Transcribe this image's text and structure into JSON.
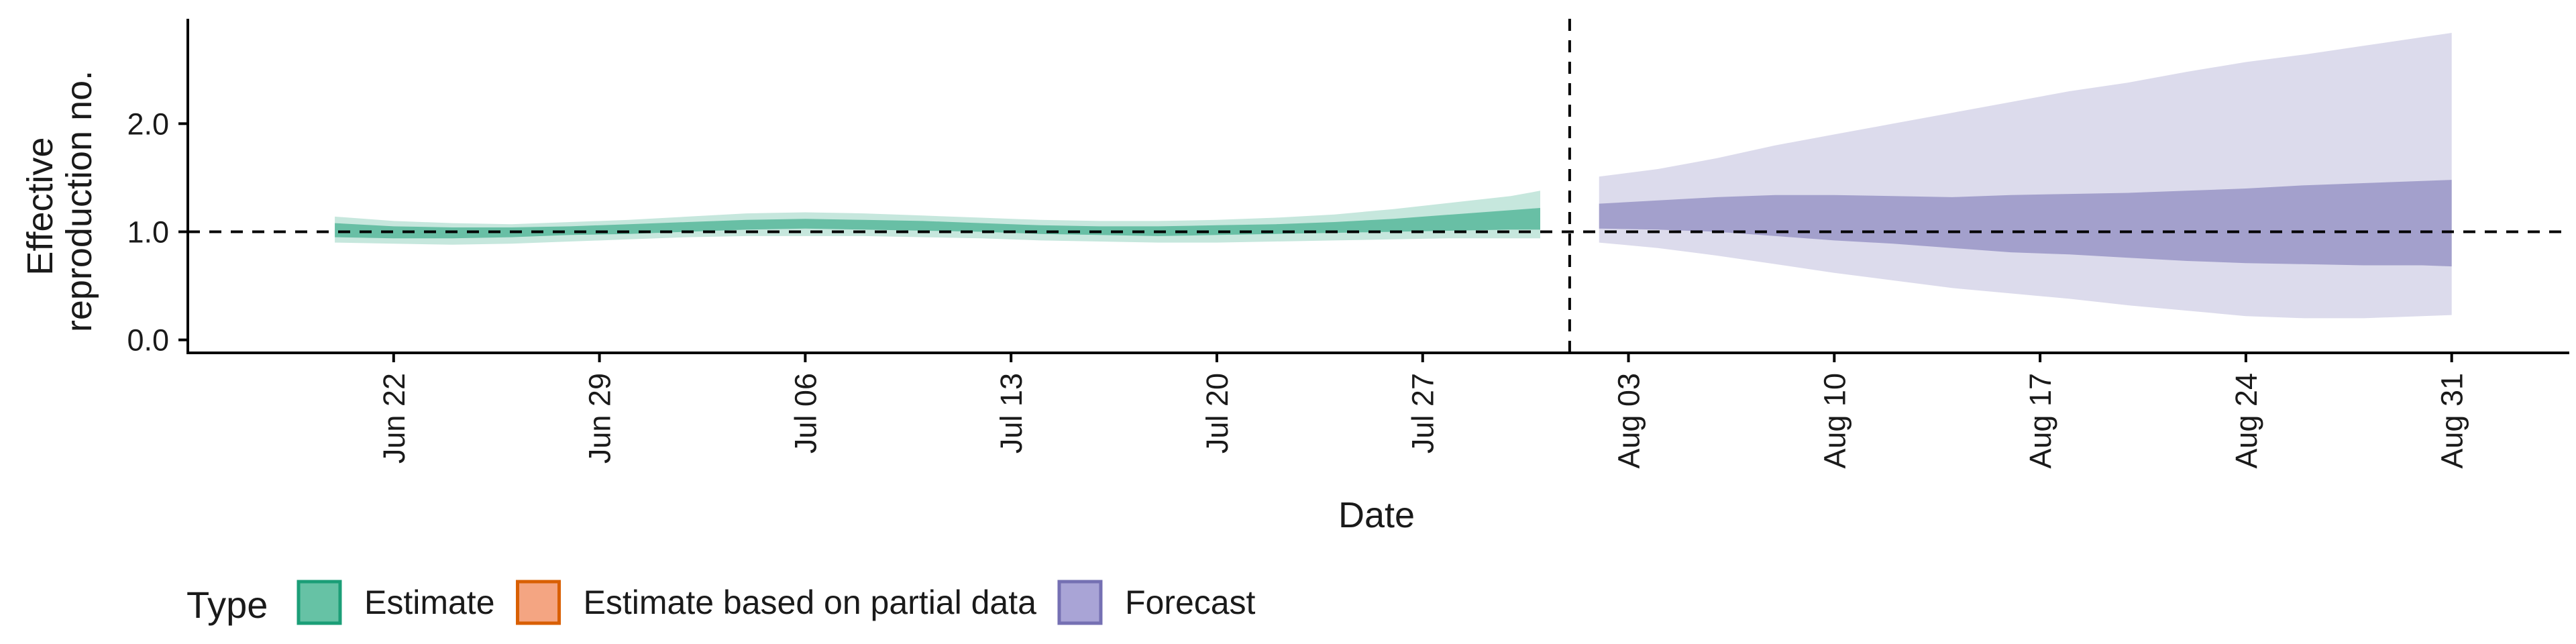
{
  "chart_data": {
    "type": "area",
    "xlabel": "Date",
    "ylabel_lines": [
      "Effective",
      "reproduction no."
    ],
    "x_axis": {
      "range": [
        "2020-06-15",
        "2020-09-04"
      ],
      "ticks": [
        {
          "date": "2020-06-22",
          "label": "Jun 22"
        },
        {
          "date": "2020-06-29",
          "label": "Jun 29"
        },
        {
          "date": "2020-07-06",
          "label": "Jul 06"
        },
        {
          "date": "2020-07-13",
          "label": "Jul 13"
        },
        {
          "date": "2020-07-20",
          "label": "Jul 20"
        },
        {
          "date": "2020-07-27",
          "label": "Jul 27"
        },
        {
          "date": "2020-08-03",
          "label": "Aug 03"
        },
        {
          "date": "2020-08-10",
          "label": "Aug 10"
        },
        {
          "date": "2020-08-17",
          "label": "Aug 17"
        },
        {
          "date": "2020-08-24",
          "label": "Aug 24"
        },
        {
          "date": "2020-08-31",
          "label": "Aug 31"
        }
      ]
    },
    "y_axis": {
      "range": [
        -0.12,
        2.97
      ],
      "ticks": [
        {
          "value": 0,
          "label": "0.0"
        },
        {
          "value": 1,
          "label": "1.0"
        },
        {
          "value": 2,
          "label": "2.0"
        }
      ]
    },
    "reference_lines": {
      "horizontal_y": 1.0,
      "vertical_date": "2020-08-01"
    },
    "grid": false,
    "legend": {
      "title": "Type",
      "position": "bottom",
      "items": [
        {
          "label": "Estimate",
          "fill": "#66c2a5",
          "stroke": "#1b9e77"
        },
        {
          "label": "Estimate based on partial data",
          "fill": "#f4a582",
          "stroke": "#d95f02"
        },
        {
          "label": "Forecast",
          "fill": "#a9a4d6",
          "stroke": "#7570b3"
        }
      ]
    },
    "series": [
      {
        "name": "Estimate",
        "color": "#1b9e77",
        "points": [
          {
            "date": "2020-06-20",
            "outer": [
              0.9,
              1.14
            ],
            "inner": [
              0.95,
              1.08
            ]
          },
          {
            "date": "2020-06-22",
            "outer": [
              0.89,
              1.1
            ],
            "inner": [
              0.94,
              1.05
            ]
          },
          {
            "date": "2020-06-24",
            "outer": [
              0.88,
              1.08
            ],
            "inner": [
              0.94,
              1.04
            ]
          },
          {
            "date": "2020-06-26",
            "outer": [
              0.89,
              1.07
            ],
            "inner": [
              0.95,
              1.04
            ]
          },
          {
            "date": "2020-06-28",
            "outer": [
              0.91,
              1.09
            ],
            "inner": [
              0.97,
              1.05
            ]
          },
          {
            "date": "2020-06-30",
            "outer": [
              0.93,
              1.11
            ],
            "inner": [
              0.98,
              1.07
            ]
          },
          {
            "date": "2020-07-02",
            "outer": [
              0.95,
              1.14
            ],
            "inner": [
              1.0,
              1.09
            ]
          },
          {
            "date": "2020-07-04",
            "outer": [
              0.96,
              1.17
            ],
            "inner": [
              1.02,
              1.11
            ]
          },
          {
            "date": "2020-07-06",
            "outer": [
              0.96,
              1.18
            ],
            "inner": [
              1.03,
              1.12
            ]
          },
          {
            "date": "2020-07-08",
            "outer": [
              0.96,
              1.17
            ],
            "inner": [
              1.02,
              1.11
            ]
          },
          {
            "date": "2020-07-10",
            "outer": [
              0.95,
              1.15
            ],
            "inner": [
              1.01,
              1.1
            ]
          },
          {
            "date": "2020-07-12",
            "outer": [
              0.94,
              1.13
            ],
            "inner": [
              1.0,
              1.08
            ]
          },
          {
            "date": "2020-07-14",
            "outer": [
              0.92,
              1.11
            ],
            "inner": [
              0.98,
              1.06
            ]
          },
          {
            "date": "2020-07-16",
            "outer": [
              0.91,
              1.1
            ],
            "inner": [
              0.97,
              1.05
            ]
          },
          {
            "date": "2020-07-18",
            "outer": [
              0.9,
              1.1
            ],
            "inner": [
              0.96,
              1.05
            ]
          },
          {
            "date": "2020-07-20",
            "outer": [
              0.9,
              1.11
            ],
            "inner": [
              0.97,
              1.06
            ]
          },
          {
            "date": "2020-07-22",
            "outer": [
              0.91,
              1.13
            ],
            "inner": [
              0.98,
              1.07
            ]
          },
          {
            "date": "2020-07-24",
            "outer": [
              0.92,
              1.16
            ],
            "inner": [
              0.99,
              1.09
            ]
          },
          {
            "date": "2020-07-26",
            "outer": [
              0.93,
              1.21
            ],
            "inner": [
              1.0,
              1.12
            ]
          },
          {
            "date": "2020-07-28",
            "outer": [
              0.94,
              1.27
            ],
            "inner": [
              1.01,
              1.16
            ]
          },
          {
            "date": "2020-07-30",
            "outer": [
              0.94,
              1.33
            ],
            "inner": [
              1.02,
              1.2
            ]
          },
          {
            "date": "2020-07-31",
            "outer": [
              0.94,
              1.38
            ],
            "inner": [
              1.02,
              1.22
            ]
          }
        ]
      },
      {
        "name": "Forecast",
        "color": "#7570b3",
        "points": [
          {
            "date": "2020-08-02",
            "outer": [
              0.9,
              1.51
            ],
            "inner": [
              1.03,
              1.26
            ]
          },
          {
            "date": "2020-08-04",
            "outer": [
              0.85,
              1.58
            ],
            "inner": [
              1.02,
              1.29
            ]
          },
          {
            "date": "2020-08-06",
            "outer": [
              0.78,
              1.68
            ],
            "inner": [
              1.0,
              1.32
            ]
          },
          {
            "date": "2020-08-08",
            "outer": [
              0.7,
              1.8
            ],
            "inner": [
              0.96,
              1.34
            ]
          },
          {
            "date": "2020-08-10",
            "outer": [
              0.62,
              1.9
            ],
            "inner": [
              0.92,
              1.34
            ]
          },
          {
            "date": "2020-08-12",
            "outer": [
              0.55,
              2.0
            ],
            "inner": [
              0.89,
              1.33
            ]
          },
          {
            "date": "2020-08-14",
            "outer": [
              0.48,
              2.1
            ],
            "inner": [
              0.85,
              1.32
            ]
          },
          {
            "date": "2020-08-16",
            "outer": [
              0.43,
              2.2
            ],
            "inner": [
              0.81,
              1.34
            ]
          },
          {
            "date": "2020-08-18",
            "outer": [
              0.38,
              2.3
            ],
            "inner": [
              0.79,
              1.35
            ]
          },
          {
            "date": "2020-08-20",
            "outer": [
              0.32,
              2.38
            ],
            "inner": [
              0.76,
              1.36
            ]
          },
          {
            "date": "2020-08-22",
            "outer": [
              0.27,
              2.48
            ],
            "inner": [
              0.73,
              1.38
            ]
          },
          {
            "date": "2020-08-24",
            "outer": [
              0.22,
              2.57
            ],
            "inner": [
              0.71,
              1.4
            ]
          },
          {
            "date": "2020-08-26",
            "outer": [
              0.2,
              2.64
            ],
            "inner": [
              0.7,
              1.43
            ]
          },
          {
            "date": "2020-08-28",
            "outer": [
              0.2,
              2.72
            ],
            "inner": [
              0.69,
              1.45
            ]
          },
          {
            "date": "2020-08-30",
            "outer": [
              0.22,
              2.8
            ],
            "inner": [
              0.69,
              1.47
            ]
          },
          {
            "date": "2020-08-31",
            "outer": [
              0.23,
              2.84
            ],
            "inner": [
              0.68,
              1.48
            ]
          }
        ]
      }
    ]
  }
}
